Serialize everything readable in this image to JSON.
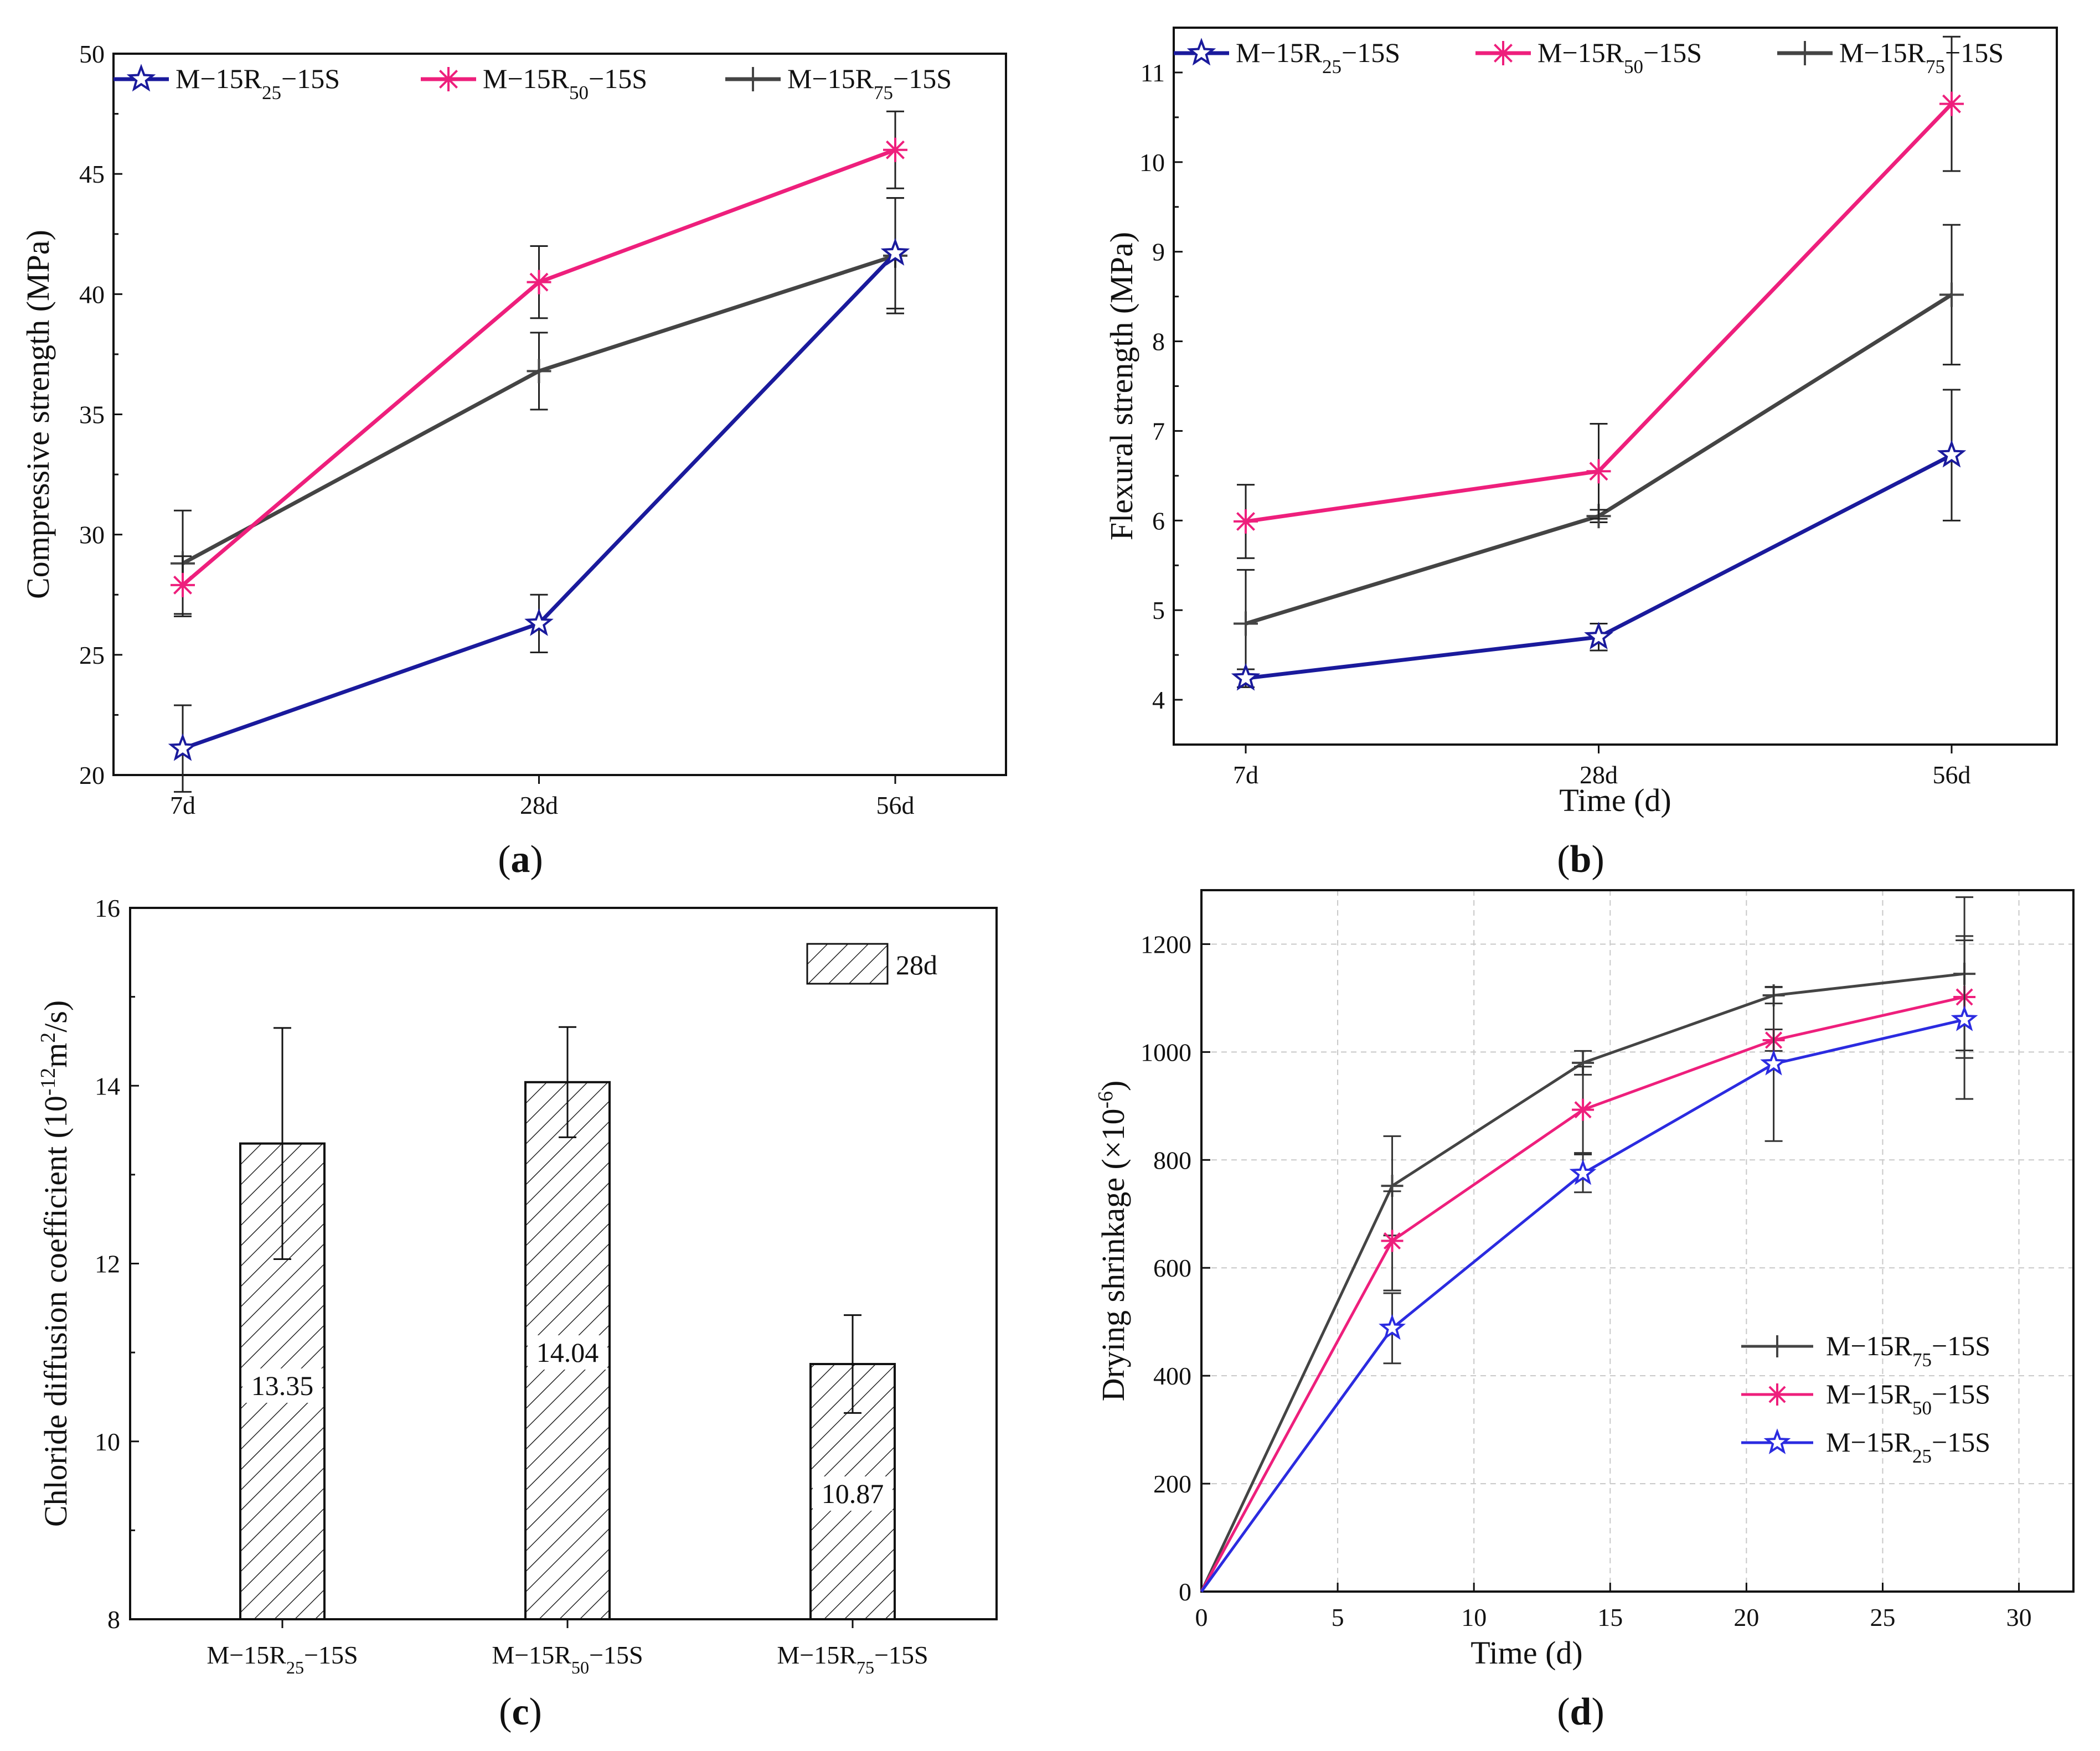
{
  "colors": {
    "blue": "#1a1a9c",
    "pink": "#ee1f7c",
    "gray": "#444444",
    "brightBlue": "#2b2be0",
    "ink": "#111111"
  },
  "chart_data": [
    {
      "id": "a",
      "type": "line",
      "title": "",
      "caption": "a",
      "categories": [
        "7d",
        "28d",
        "56d"
      ],
      "ylabel": "Compressive strength (MPa)",
      "xlabel": "",
      "ylim": [
        20,
        50
      ],
      "yticks": [
        "20",
        "25",
        "30",
        "35",
        "40",
        "45",
        "50"
      ],
      "legend_position": "top",
      "series": [
        {
          "name": "M−15R25−15S",
          "base": "M−15R",
          "sub": "25",
          "suffix": "−15S",
          "marker": "star",
          "color": "blue",
          "values": [
            21.1,
            26.3,
            41.7
          ],
          "err": [
            1.8,
            1.2,
            2.3
          ]
        },
        {
          "name": "M−15R50−15S",
          "base": "M−15R",
          "sub": "50",
          "suffix": "−15S",
          "marker": "asterisk",
          "color": "pink",
          "values": [
            27.9,
            40.5,
            46.0
          ],
          "err": [
            1.2,
            1.5,
            1.6
          ]
        },
        {
          "name": "M−15R75−15S",
          "base": "M−15R",
          "sub": "75",
          "suffix": "−15S",
          "marker": "plus",
          "color": "gray",
          "values": [
            28.8,
            36.8,
            41.6
          ],
          "err": [
            2.2,
            1.6,
            2.4
          ]
        }
      ]
    },
    {
      "id": "b",
      "type": "line",
      "title": "",
      "caption": "b",
      "categories": [
        "7d",
        "28d",
        "56d"
      ],
      "ylabel": "Flexural strength (MPa)",
      "xlabel": "Time (d)",
      "ylim": [
        3.5,
        11.5
      ],
      "yticks": [
        "4",
        "5",
        "6",
        "7",
        "8",
        "9",
        "10",
        "11"
      ],
      "legend_position": "top",
      "series": [
        {
          "name": "M−15R25−15S",
          "base": "M−15R",
          "sub": "25",
          "suffix": "−15S",
          "marker": "star",
          "color": "blue",
          "values": [
            4.24,
            4.7,
            6.73
          ],
          "err": [
            0.1,
            0.15,
            0.73
          ]
        },
        {
          "name": "M−15R50−15S",
          "base": "M−15R",
          "sub": "50",
          "suffix": "−15S",
          "marker": "asterisk",
          "color": "pink",
          "values": [
            5.99,
            6.55,
            10.65
          ],
          "err": [
            0.41,
            0.53,
            0.75
          ]
        },
        {
          "name": "M−15R75−15S",
          "base": "M−15R",
          "sub": "75",
          "suffix": "−15S",
          "marker": "plus",
          "color": "gray",
          "values": [
            4.85,
            6.05,
            8.52
          ],
          "err": [
            0.6,
            0.07,
            0.78
          ]
        }
      ]
    },
    {
      "id": "c",
      "type": "bar",
      "title": "",
      "caption": "c",
      "ylabel_main": "Chloride diffusion coefficient (10",
      "ylabel_sup1": "-12",
      "ylabel_mid": "m",
      "ylabel_sup2": "2",
      "ylabel_end": "/s)",
      "ylim": [
        8,
        16
      ],
      "yticks": [
        "8",
        "10",
        "12",
        "14",
        "16"
      ],
      "legend": "28d",
      "legend_position": "top-right",
      "categories": [
        {
          "name": "M−15R25−15S",
          "base": "M−15R",
          "sub": "25",
          "suffix": "−15S"
        },
        {
          "name": "M−15R50−15S",
          "base": "M−15R",
          "sub": "50",
          "suffix": "−15S"
        },
        {
          "name": "M−15R75−15S",
          "base": "M−15R",
          "sub": "75",
          "suffix": "−15S"
        }
      ],
      "values": [
        13.35,
        14.04,
        10.87
      ],
      "labels": [
        "13.35",
        "14.04",
        "10.87"
      ],
      "err": [
        1.3,
        0.62,
        0.55
      ]
    },
    {
      "id": "d",
      "type": "line",
      "title": "",
      "caption": "d",
      "xlabel": "Time (d)",
      "ylabel_main": "Drying shrinkage (×10",
      "ylabel_sup": "-6",
      "ylabel_end": ")",
      "xlim": [
        0,
        32
      ],
      "ylim": [
        0,
        1300
      ],
      "xticks": [
        "0",
        "5",
        "10",
        "15",
        "20",
        "25",
        "30"
      ],
      "yticks": [
        "0",
        "200",
        "400",
        "600",
        "800",
        "1000",
        "1200"
      ],
      "grid": true,
      "legend_position": "lower-right",
      "x": [
        0,
        7,
        14,
        21,
        28
      ],
      "series": [
        {
          "name": "M−15R75−15S",
          "base": "M−15R",
          "sub": "75",
          "suffix": "−15S",
          "marker": "plus",
          "color": "gray",
          "values": [
            0,
            752,
            980,
            1105,
            1145
          ],
          "err": [
            0,
            92,
            22,
            15,
            142
          ]
        },
        {
          "name": "M−15R50−15S",
          "base": "M−15R",
          "sub": "50",
          "suffix": "−15S",
          "marker": "asterisk",
          "color": "pink",
          "values": [
            0,
            650,
            893,
            1022,
            1102
          ],
          "err": [
            0,
            92,
            80,
            20,
            113
          ]
        },
        {
          "name": "M−15R25−15S",
          "base": "M−15R",
          "sub": "25",
          "suffix": "−15S",
          "marker": "star",
          "color": "brightBlue",
          "values": [
            0,
            488,
            775,
            978,
            1060
          ],
          "err": [
            0,
            65,
            35,
            143,
            147
          ]
        }
      ]
    }
  ]
}
